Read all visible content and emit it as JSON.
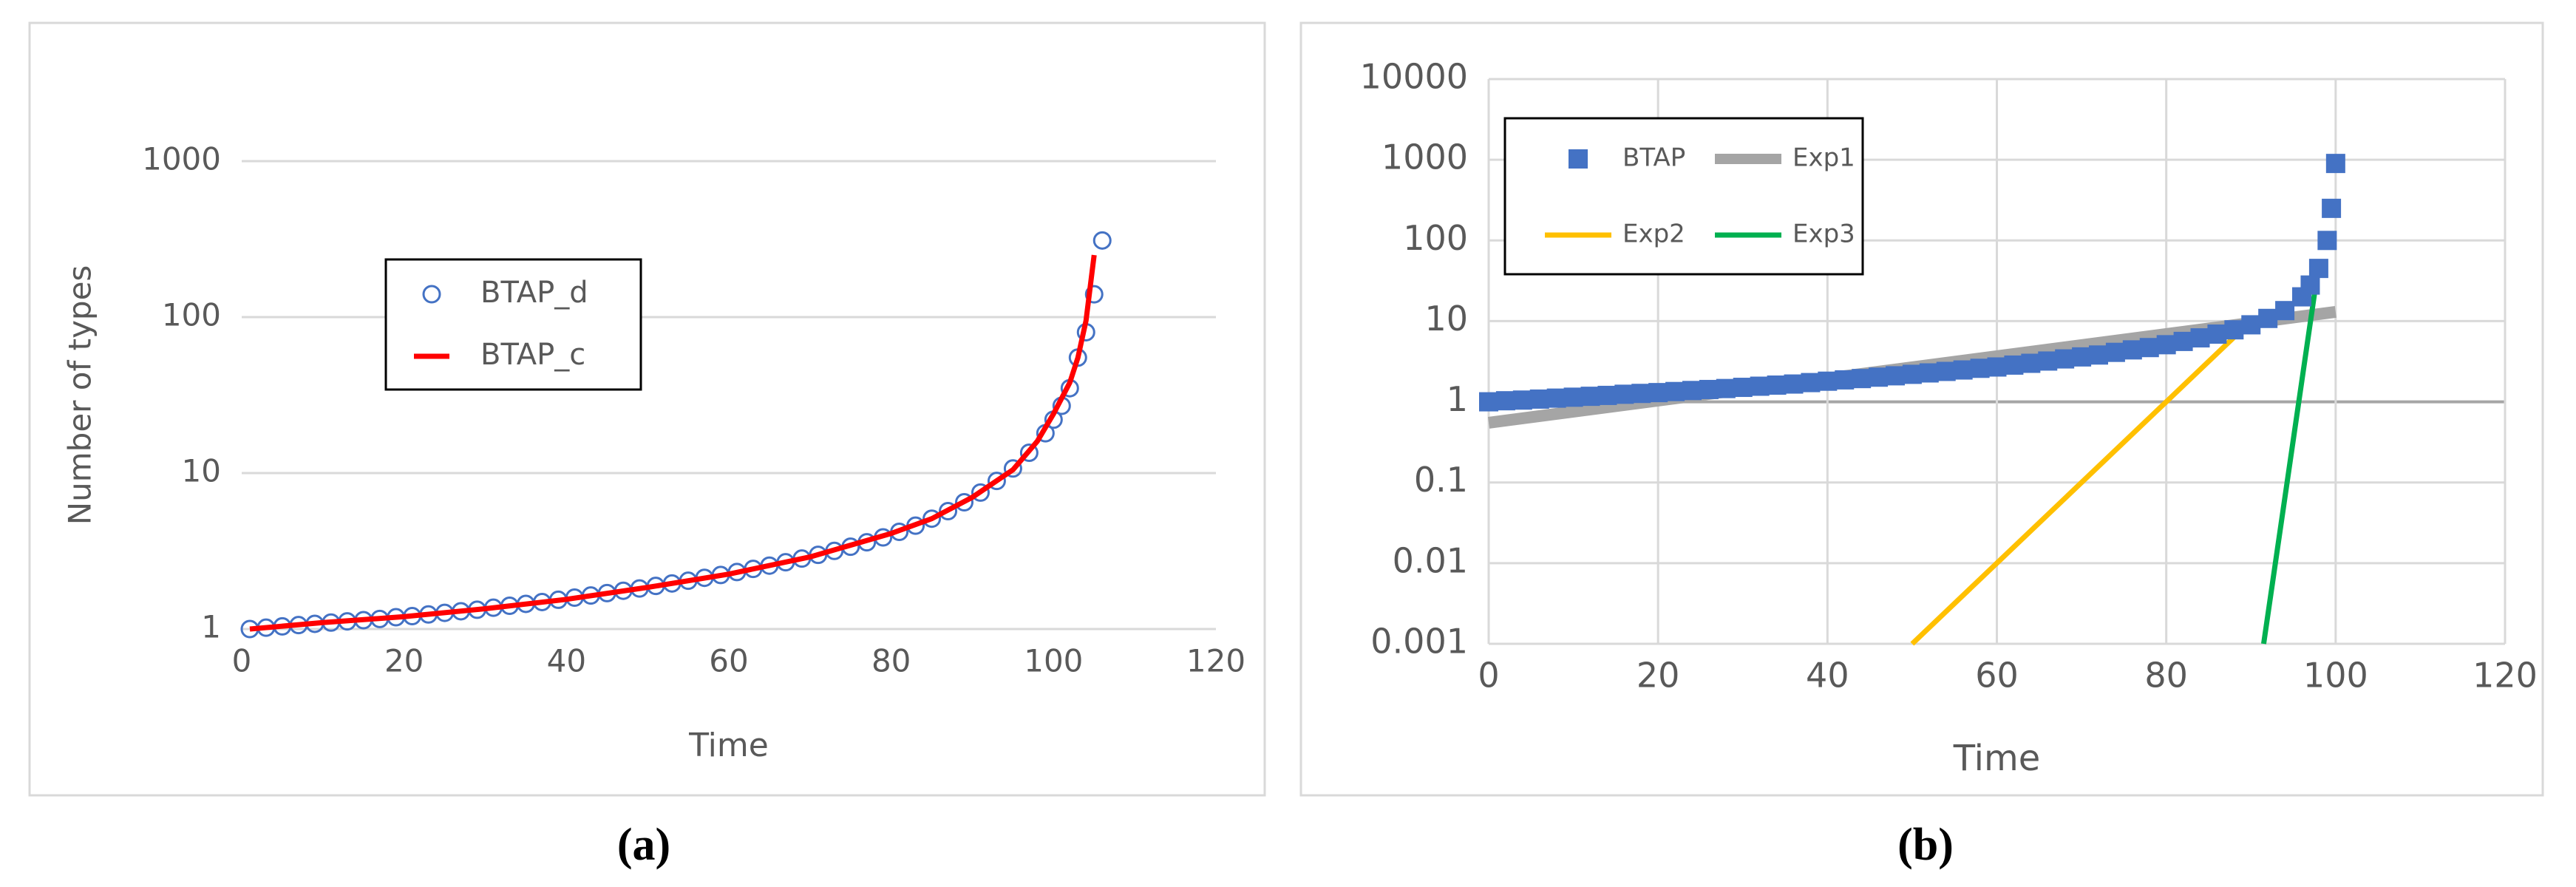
{
  "chart_data": [
    {
      "type": "line",
      "caption": "(a)",
      "xlabel": "Time",
      "ylabel": "Number of types",
      "yscale": "log",
      "xlim": [
        0,
        120
      ],
      "ylim": [
        1,
        1000
      ],
      "xticks": [
        0,
        20,
        40,
        60,
        80,
        100,
        120
      ],
      "yticks": [
        1,
        10,
        100,
        1000
      ],
      "ygrid": true,
      "xgrid": false,
      "legend": "upper left",
      "series": [
        {
          "name": "BTAP_d",
          "type": "scatter",
          "marker": "circle",
          "color": "#4472c4",
          "x": [
            1,
            3,
            5,
            7,
            9,
            11,
            13,
            15,
            17,
            19,
            21,
            23,
            25,
            27,
            29,
            31,
            33,
            35,
            37,
            39,
            41,
            43,
            45,
            47,
            49,
            51,
            53,
            55,
            57,
            59,
            61,
            63,
            65,
            67,
            69,
            71,
            73,
            75,
            77,
            79,
            81,
            83,
            85,
            87,
            89,
            91,
            93,
            95,
            97,
            99,
            100,
            101,
            102,
            103,
            104,
            105,
            106
          ],
          "values": [
            1.0,
            1.02,
            1.04,
            1.06,
            1.08,
            1.1,
            1.12,
            1.14,
            1.16,
            1.19,
            1.21,
            1.24,
            1.27,
            1.3,
            1.33,
            1.37,
            1.41,
            1.45,
            1.49,
            1.54,
            1.59,
            1.64,
            1.7,
            1.76,
            1.82,
            1.89,
            1.96,
            2.04,
            2.13,
            2.22,
            2.32,
            2.43,
            2.55,
            2.68,
            2.83,
            2.99,
            3.17,
            3.37,
            3.6,
            3.87,
            4.2,
            4.6,
            5.1,
            5.7,
            6.5,
            7.5,
            8.9,
            10.7,
            13.5,
            18,
            22,
            27,
            35,
            55,
            80,
            140,
            310
          ]
        },
        {
          "name": "BTAP_c",
          "type": "line",
          "color": "#ff0000",
          "x": [
            1,
            10,
            20,
            30,
            40,
            50,
            60,
            70,
            80,
            85,
            90,
            95,
            98,
            100,
            102,
            103,
            104,
            105
          ],
          "values": [
            1,
            1.1,
            1.2,
            1.35,
            1.55,
            1.85,
            2.25,
            2.9,
            4.1,
            5.1,
            7,
            10.5,
            16,
            24,
            38,
            55,
            95,
            250
          ]
        }
      ]
    },
    {
      "type": "line",
      "caption": "(b)",
      "xlabel": "Time",
      "yscale": "log",
      "xlim": [
        0,
        120
      ],
      "ylim": [
        0.001,
        10000
      ],
      "xticks": [
        0,
        20,
        40,
        60,
        80,
        100,
        120
      ],
      "yticks": [
        0.001,
        0.01,
        0.1,
        1,
        10,
        100,
        1000,
        10000
      ],
      "ygrid": true,
      "xgrid": true,
      "legend": "upper left",
      "series": [
        {
          "name": "BTAP",
          "type": "scatter",
          "marker": "square",
          "color": "#4472c4",
          "x": [
            0,
            2,
            4,
            6,
            8,
            10,
            12,
            14,
            16,
            18,
            20,
            22,
            24,
            26,
            28,
            30,
            32,
            34,
            36,
            38,
            40,
            42,
            44,
            46,
            48,
            50,
            52,
            54,
            56,
            58,
            60,
            62,
            64,
            66,
            68,
            70,
            72,
            74,
            76,
            78,
            80,
            82,
            84,
            86,
            88,
            90,
            92,
            94,
            96,
            97,
            98,
            99,
            99.5,
            100
          ],
          "values": [
            1.0,
            1.03,
            1.05,
            1.08,
            1.11,
            1.14,
            1.17,
            1.2,
            1.24,
            1.27,
            1.3,
            1.34,
            1.38,
            1.42,
            1.46,
            1.51,
            1.56,
            1.61,
            1.66,
            1.73,
            1.8,
            1.87,
            1.94,
            2.02,
            2.1,
            2.19,
            2.28,
            2.38,
            2.48,
            2.6,
            2.7,
            2.85,
            3.0,
            3.2,
            3.4,
            3.6,
            3.8,
            4.1,
            4.4,
            4.7,
            5.1,
            5.6,
            6.2,
            6.9,
            7.8,
            9.0,
            10.8,
            13.5,
            20,
            28,
            45,
            100,
            250,
            900
          ]
        },
        {
          "name": "Exp1",
          "type": "line",
          "color": "#a5a5a5",
          "x": [
            0,
            100
          ],
          "values": [
            0.55,
            13
          ]
        },
        {
          "name": "Exp2",
          "type": "line",
          "color": "#ffc000",
          "x": [
            50,
            90
          ],
          "values": [
            0.001,
            10
          ]
        },
        {
          "name": "Exp3",
          "type": "line",
          "color": "#00b050",
          "x": [
            91.5,
            98
          ],
          "values": [
            0.001,
            50
          ]
        }
      ]
    }
  ]
}
